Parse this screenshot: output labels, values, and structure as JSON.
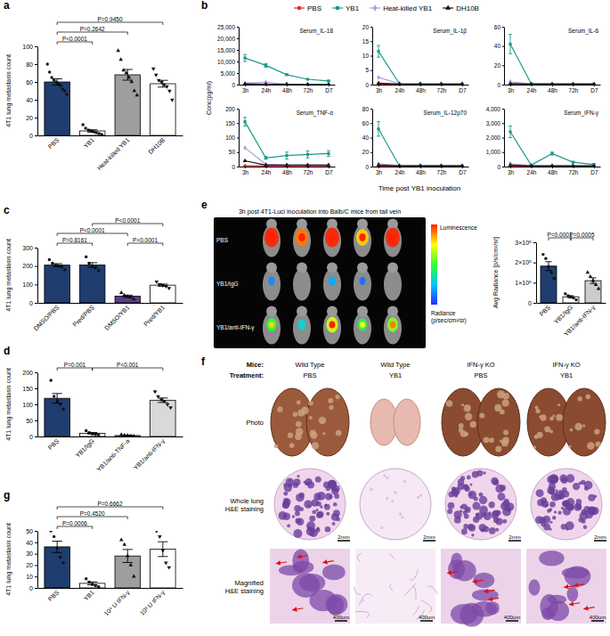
{
  "chart_data": [
    {
      "panel": "a",
      "type": "bar",
      "categories": [
        "PBS",
        "YB1",
        "Heat-killed YB1",
        "DH10B"
      ],
      "values": [
        60,
        5,
        68,
        58
      ],
      "errors": [
        3.5,
        1.3,
        6,
        3.8
      ],
      "points": [
        [
          80,
          71,
          65,
          62,
          60,
          58,
          56,
          52,
          50,
          46
        ],
        [
          12,
          8,
          6,
          5,
          4,
          3,
          2,
          1
        ],
        [
          95,
          85,
          73,
          70,
          65,
          60,
          50,
          45
        ],
        [
          75,
          68,
          62,
          60,
          57,
          55,
          50,
          40
        ]
      ],
      "colors": [
        "#1f3d6e",
        "#ffffff",
        "#9e9e9e",
        "#ffffff"
      ],
      "ylabel": "4T1 lung metastasis count",
      "ylim": [
        0,
        100
      ],
      "yticks": [
        0,
        20,
        40,
        60,
        80,
        100
      ],
      "comparisons": [
        {
          "between": [
            "PBS",
            "YB1"
          ],
          "label": "P<0.0001"
        },
        {
          "between": [
            "PBS",
            "Heat-killed YB1"
          ],
          "label": "P=0.2642"
        },
        {
          "between": [
            "PBS",
            "DH10B"
          ],
          "label": "P=0.9450"
        }
      ]
    },
    {
      "panel": "b",
      "type": "line",
      "categories": [
        "3h",
        "24h",
        "48h",
        "72h",
        "D7"
      ],
      "xlabel": "Time post YB1 inoculation",
      "ylabel": "Conc(pg/ml)",
      "legend": "top",
      "series": [
        {
          "name": "PBS",
          "color": "#e8262a",
          "marker": "circle"
        },
        {
          "name": "YB1",
          "color": "#1a9a8c",
          "marker": "square"
        },
        {
          "name": "Heat-killed YB1",
          "color": "#a99be0",
          "marker": "diamond"
        },
        {
          "name": "DH10B",
          "color": "#111111",
          "marker": "triangle"
        }
      ],
      "subplots": [
        {
          "title": "Serum_IL-18",
          "ylim": [
            0,
            25000
          ],
          "yticks": [
            0,
            {
              "value": 5000,
              "label": "5,000"
            },
            {
              "value": 10000,
              "label": "10,000"
            },
            {
              "value": 15000,
              "label": "15,000"
            },
            {
              "value": 20000,
              "label": "20,000"
            },
            {
              "value": 25000,
              "label": "25,000"
            }
          ],
          "series": [
            {
              "values": [
                200,
                150,
                120,
                100,
                100
              ]
            },
            {
              "values": [
                11500,
                8300,
                4300,
                2300,
                1600
              ],
              "errors": [
                1500,
                800,
                300,
                200,
                150
              ]
            },
            {
              "values": [
                600,
                1000,
                200,
                150,
                100
              ]
            },
            {
              "values": [
                300,
                200,
                150,
                100,
                100
              ]
            }
          ]
        },
        {
          "title": "Serum_IL-1β",
          "ylim": [
            0,
            20
          ],
          "yticks": [
            0,
            5,
            10,
            15,
            20
          ],
          "series": [
            {
              "values": [
                0.2,
                0.1,
                0.1,
                0.1,
                0.1
              ]
            },
            {
              "values": [
                11.5,
                0.3,
                0.2,
                0.2,
                0.2
              ],
              "errors": [
                2,
                0.1,
                0.1,
                0.1,
                0.1
              ]
            },
            {
              "values": [
                2.5,
                0.3,
                0.2,
                0.2,
                0.2
              ]
            },
            {
              "values": [
                0.5,
                0.2,
                0.2,
                0.2,
                0.2
              ]
            }
          ]
        },
        {
          "title": "Serum_IL-6",
          "ylim": [
            0,
            60
          ],
          "yticks": [
            0,
            20,
            40,
            60
          ],
          "series": [
            {
              "values": [
                0.5,
                0.5,
                0.5,
                0.5,
                0.5
              ]
            },
            {
              "values": [
                42,
                1,
                0.5,
                0.5,
                0.5
              ],
              "errors": [
                10,
                0.3,
                0.2,
                0.2,
                0.2
              ]
            },
            {
              "values": [
                3,
                0.5,
                0.5,
                0.5,
                0.5
              ]
            },
            {
              "values": [
                1,
                0.5,
                0.5,
                0.5,
                0.5
              ]
            }
          ]
        },
        {
          "title": "Serum_TNF-α",
          "ylim": [
            0,
            200
          ],
          "yticks": [
            0,
            50,
            100,
            150,
            200
          ],
          "series": [
            {
              "values": [
                3,
                3,
                3,
                3,
                3
              ]
            },
            {
              "values": [
                155,
                30,
                38,
                42,
                45
              ],
              "errors": [
                15,
                5,
                12,
                12,
                10
              ]
            },
            {
              "values": [
                65,
                8,
                5,
                5,
                5
              ]
            },
            {
              "values": [
                20,
                5,
                5,
                5,
                5
              ]
            }
          ]
        },
        {
          "title": "Serum_IL-12p70",
          "ylim": [
            0,
            80
          ],
          "yticks": [
            0,
            20,
            40,
            60,
            80
          ],
          "series": [
            {
              "values": [
                0.5,
                0.5,
                0.5,
                0.5,
                0.5
              ]
            },
            {
              "values": [
                52,
                1,
                1,
                1,
                1
              ],
              "errors": [
                10,
                0.5,
                0.5,
                0.5,
                0.5
              ]
            },
            {
              "values": [
                4,
                1,
                1,
                1,
                1
              ]
            },
            {
              "values": [
                2,
                1,
                1,
                1,
                1
              ]
            }
          ]
        },
        {
          "title": "Serum_IFN-γ",
          "ylim": [
            0,
            4000
          ],
          "yticks": [
            0,
            {
              "value": 1000,
              "label": "1,000"
            },
            {
              "value": 2000,
              "label": "2,000"
            },
            {
              "value": 3000,
              "label": "3,000"
            },
            {
              "value": 4000,
              "label": "4,000"
            }
          ],
          "series": [
            {
              "values": [
                20,
                20,
                20,
                20,
                20
              ]
            },
            {
              "values": [
                2400,
                100,
                900,
                300,
                150
              ],
              "errors": [
                400,
                50,
                100,
                50,
                50
              ]
            },
            {
              "values": [
                200,
                50,
                50,
                50,
                50
              ]
            },
            {
              "values": [
                100,
                50,
                50,
                50,
                50
              ]
            }
          ]
        }
      ]
    },
    {
      "panel": "c",
      "type": "bar",
      "categories": [
        "DMSO/PBS",
        "Pred/PBS",
        "DMSO/YB1",
        "Pred/YB1"
      ],
      "values": [
        205,
        206,
        36,
        96
      ],
      "errors": [
        8,
        12,
        6,
        6
      ],
      "points": [
        [
          235,
          215,
          205,
          200,
          195,
          180
        ],
        [
          250,
          215,
          200,
          190,
          175
        ],
        [
          55,
          40,
          35,
          30,
          20
        ],
        [
          115,
          100,
          95,
          90,
          80
        ]
      ],
      "colors": [
        "#1f3d6e",
        "#1f3d6e",
        "#5b3c88",
        "#ffffff"
      ],
      "ylabel": "4T1 lung metastasis count",
      "ylim": [
        0,
        300
      ],
      "yticks": [
        0,
        100,
        200,
        300
      ],
      "comparisons": [
        {
          "between": [
            "DMSO/PBS",
            "DMSO/YB1"
          ],
          "label": "P<0.0001"
        },
        {
          "between": [
            "DMSO/PBS",
            "Pred/PBS"
          ],
          "label": "P=0.8161"
        },
        {
          "between": [
            "Pred/PBS",
            "Pred/YB1"
          ],
          "label": "P<0.0001"
        },
        {
          "between": [
            "DMSO/YB1",
            "Pred/YB1"
          ],
          "label": "P<0.0001"
        }
      ]
    },
    {
      "panel": "d",
      "type": "bar",
      "categories": [
        "PBS",
        "YB1/IgG",
        "YB1/anti-TNF-a",
        "YB1/anti-IFN-γ"
      ],
      "values": [
        119,
        10,
        3,
        113
      ],
      "errors": [
        15,
        2.4,
        0.9,
        7
      ],
      "points": [
        [
          175,
          125,
          110,
          100,
          85
        ],
        [
          18,
          12,
          8,
          6,
          5
        ],
        [
          6,
          4,
          3,
          2,
          1
        ],
        [
          140,
          125,
          115,
          110,
          100,
          90
        ]
      ],
      "colors": [
        "#1f3d6e",
        "#ffffff",
        "#ffffff",
        "#d9d9d9"
      ],
      "ylabel": "4T1 lung metastasis count",
      "ylim": [
        0,
        200
      ],
      "yticks": [
        0,
        50,
        100,
        150,
        200
      ],
      "comparisons": [
        {
          "between": [
            "PBS",
            "YB1/IgG"
          ],
          "label": "P=0.001"
        },
        {
          "between": [
            "YB1/IgG",
            "YB1/anti-IFN-γ"
          ],
          "label": "P<0.001"
        }
      ]
    },
    {
      "type": "bar",
      "categories": [
        "PBS",
        "YB1/IgG",
        "YB1/anti-IFN-γ"
      ],
      "values": [
        182000,
        30000,
        110000
      ],
      "errors": [
        22000,
        5000,
        14000
      ],
      "points": [
        [
          240000,
          220000,
          180000,
          150000,
          120000
        ],
        [
          45000,
          35000,
          30000,
          25000,
          15000
        ],
        [
          150000,
          130000,
          110000,
          90000,
          70000
        ]
      ],
      "colors": [
        "#1f3d6e",
        "#ffffff",
        "#cccccc"
      ],
      "ylabel": "Avg Radiance [p/s/cm²/sr]",
      "ylim": [
        0,
        300000
      ],
      "yticks": [
        0,
        {
          "value": 100000,
          "label": "1×10⁵"
        },
        {
          "value": 200000,
          "label": "2×10⁵"
        },
        {
          "value": 300000,
          "label": "3×10⁵"
        }
      ],
      "comparisons": [
        {
          "between": [
            "PBS",
            "YB1/IgG"
          ],
          "label": "P=0.0001"
        },
        {
          "between": [
            "YB1/IgG",
            "YB1/anti-IFN-γ"
          ],
          "label": "P=0.0005"
        }
      ]
    },
    {
      "panel": "g",
      "type": "bar",
      "categories": [
        "PBS",
        "YB1",
        "10⁴ U IFN-γ",
        "10³ U IFN-γ"
      ],
      "values": [
        36,
        4,
        28,
        34
      ],
      "errors": [
        5,
        1.3,
        5.7,
        6.5
      ],
      "points": [
        [
          50,
          45,
          35,
          27,
          22
        ],
        [
          8,
          5,
          3,
          2,
          1
        ],
        [
          42,
          38,
          28,
          20,
          10
        ],
        [
          50,
          45,
          33,
          22,
          18
        ]
      ],
      "colors": [
        "#1f3d6e",
        "#ffffff",
        "#9e9e9e",
        "#ffffff"
      ],
      "ylabel": "4T1 lung metastasis count",
      "ylim": [
        0,
        50
      ],
      "yticks": [
        0,
        10,
        20,
        30,
        40,
        50
      ],
      "comparisons": [
        {
          "between": [
            "PBS",
            "YB1"
          ],
          "label": "P=0.0006"
        },
        {
          "between": [
            "PBS",
            "10⁴ U IFN-γ"
          ],
          "label": "P=0.4520"
        },
        {
          "between": [
            "PBS",
            "10³ U IFN-γ"
          ],
          "label": "P=0.6662"
        }
      ]
    }
  ],
  "imaging": {
    "panel": "e",
    "title": "3h post 4T1-Luci inoculation into Balb/C mice from tail vein",
    "rows": [
      "PBS",
      "YB1/IgG",
      "YB1/anti-IFN-γ"
    ],
    "colorbar_title": "Luminescence",
    "colorbar_label": [
      "Radiance",
      "(p/sec/cm²/sr)"
    ]
  },
  "tissue_panel": {
    "panel": "f",
    "row_header": [
      "Mice:",
      "Treatment:"
    ],
    "columns": [
      {
        "mice": "Wild Type",
        "treatment": "PBS"
      },
      {
        "mice": "Wild Type",
        "treatment": "YB1"
      },
      {
        "mice": "IFN-γ KO",
        "treatment": "PBS"
      },
      {
        "mice": "IFN-γ KO",
        "treatment": "YB1"
      }
    ],
    "rows": [
      [
        "Photo"
      ],
      [
        "Whole lung",
        "H&E staining"
      ],
      [
        "Magnified",
        "H&E staining"
      ]
    ],
    "scale_bars": {
      "whole_lung": "2mm",
      "magnified": "400um"
    }
  }
}
